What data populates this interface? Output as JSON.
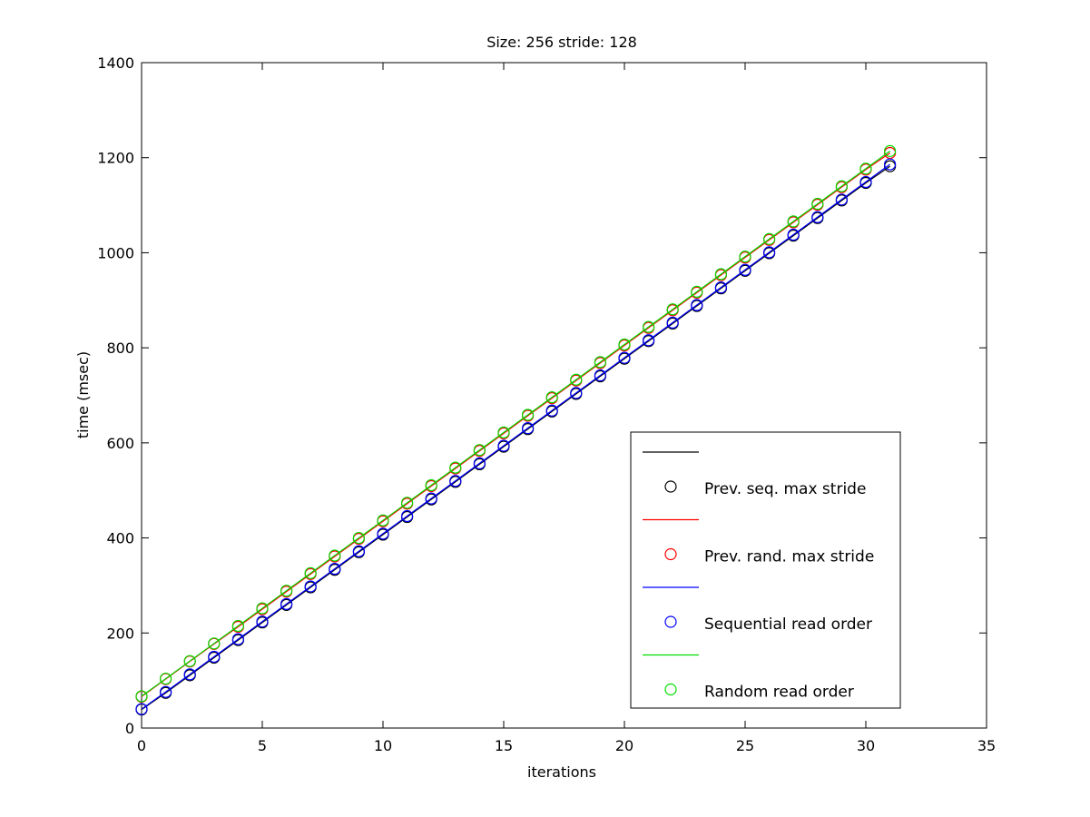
{
  "chart_data": {
    "type": "line",
    "title": "Size: 256 stride: 128",
    "xlabel": "iterations",
    "ylabel": "time (msec)",
    "xlim": [
      0,
      35
    ],
    "ylim": [
      0,
      1400
    ],
    "xticks": [
      0,
      5,
      10,
      15,
      20,
      25,
      30,
      35
    ],
    "yticks": [
      0,
      200,
      400,
      600,
      800,
      1000,
      1200,
      1400
    ],
    "grid": false,
    "legend_position": "bottom-right",
    "x": [
      0,
      1,
      2,
      3,
      4,
      5,
      6,
      7,
      8,
      9,
      10,
      11,
      12,
      13,
      14,
      15,
      16,
      17,
      18,
      19,
      20,
      21,
      22,
      23,
      24,
      25,
      26,
      27,
      28,
      29,
      30,
      31
    ],
    "series": [
      {
        "name": "Prev. seq. max stride",
        "color": "#000000",
        "values": [
          39,
          74,
          111,
          148,
          185,
          222,
          259,
          296,
          333,
          370,
          407,
          444,
          481,
          518,
          555,
          592,
          629,
          666,
          703,
          740,
          777,
          814,
          851,
          888,
          925,
          962,
          999,
          1036,
          1073,
          1110,
          1147,
          1182
        ]
      },
      {
        "name": "Prev. rand. max stride",
        "color": "#ff0000",
        "values": [
          66,
          103,
          140,
          177,
          213,
          250,
          287,
          324,
          361,
          398,
          435,
          472,
          509,
          546,
          583,
          620,
          657,
          694,
          731,
          768,
          805,
          842,
          879,
          916,
          953,
          990,
          1027,
          1064,
          1101,
          1138,
          1175,
          1210
        ]
      },
      {
        "name": "Sequential read order",
        "color": "#0000ff",
        "values": [
          40,
          76,
          113,
          150,
          187,
          224,
          261,
          298,
          335,
          372,
          409,
          446,
          483,
          520,
          557,
          594,
          631,
          668,
          705,
          742,
          779,
          816,
          853,
          890,
          927,
          964,
          1001,
          1038,
          1075,
          1112,
          1149,
          1186
        ]
      },
      {
        "name": "Random read order",
        "color": "#00dd00",
        "values": [
          67,
          104,
          141,
          178,
          215,
          252,
          289,
          326,
          363,
          400,
          437,
          474,
          511,
          548,
          585,
          622,
          659,
          696,
          733,
          770,
          807,
          844,
          881,
          918,
          955,
          992,
          1029,
          1066,
          1103,
          1140,
          1177,
          1214
        ]
      }
    ]
  }
}
